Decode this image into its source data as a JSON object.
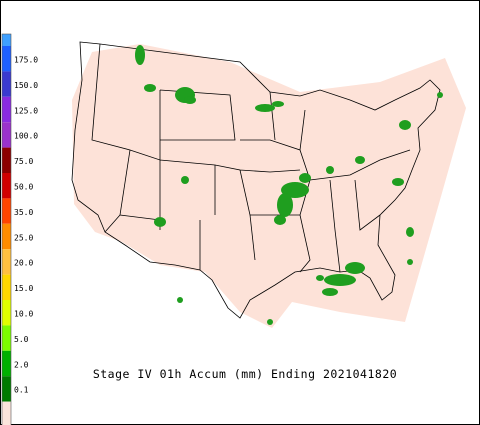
{
  "caption": "Stage IV 01h Accum (mm) Ending 2021041820",
  "colorbar": {
    "labels": [
      "175.0",
      "150.0",
      "125.0",
      "100.0",
      "75.0",
      "50.0",
      "35.0",
      "25.0",
      "20.0",
      "15.0",
      "10.0",
      "5.0",
      "2.0",
      "0.1"
    ],
    "colors": [
      "#3fa0ff",
      "#1e60ff",
      "#3a3ad0",
      "#8a2be2",
      "#9a32cc",
      "#8b0000",
      "#d00000",
      "#ff4500",
      "#ff8c00",
      "#ffc040",
      "#ffd700",
      "#e0ff00",
      "#7cfc00",
      "#00b000",
      "#007a00",
      "#fbe4dc"
    ]
  },
  "map": {
    "land_color": "#fde2d8",
    "rain_color": "#1f9e1f"
  }
}
